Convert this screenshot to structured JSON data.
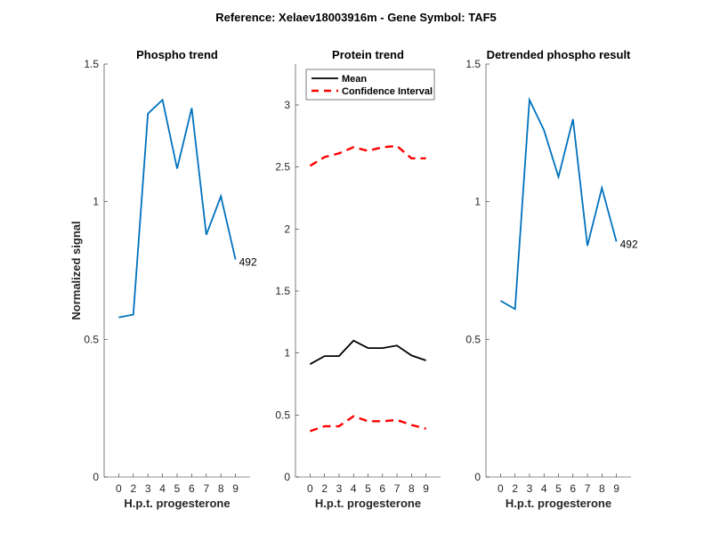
{
  "figure": {
    "suptitle": "Reference:  Xelaev18003916m - Gene Symbol:  TAF5",
    "background": "#ffffff"
  },
  "chart_data": [
    {
      "type": "line",
      "title": "Phospho trend",
      "xlabel": "H.p.t. progesterone",
      "ylabel": "Normalized signal",
      "categories": [
        "0",
        "2",
        "3",
        "4",
        "5",
        "6",
        "7",
        "8",
        "9"
      ],
      "ylim": [
        0,
        1.5
      ],
      "yticks": [
        0,
        0.5,
        1,
        1.5
      ],
      "ytick_labels": [
        "0",
        "0.5",
        "1",
        "1.5"
      ],
      "grid": false,
      "series": [
        {
          "name": "Phospho",
          "color": "#0072BD",
          "style": "solid",
          "values": [
            0.58,
            0.59,
            1.32,
            1.37,
            1.12,
            1.34,
            0.88,
            1.02,
            0.79
          ]
        }
      ],
      "annotations": [
        {
          "text": "492",
          "at_category": "9"
        }
      ]
    },
    {
      "type": "line",
      "title": "Protein trend",
      "xlabel": "H.p.t. progesterone",
      "ylabel": "",
      "categories": [
        "0",
        "2",
        "3",
        "4",
        "5",
        "6",
        "7",
        "8",
        "9"
      ],
      "ylim": [
        0,
        3.33
      ],
      "yticks": [
        0,
        0.5,
        1,
        1.5,
        2,
        2.5,
        3
      ],
      "ytick_labels": [
        "0",
        "0.5",
        "1",
        "1.5",
        "2",
        "2.5",
        "3"
      ],
      "grid": false,
      "legend": {
        "placement": "top",
        "entries": [
          "Mean",
          "Confidence Interval"
        ]
      },
      "series": [
        {
          "name": "Mean",
          "color": "#000000",
          "style": "solid",
          "values": [
            0.91,
            0.975,
            0.975,
            1.1,
            1.04,
            1.04,
            1.06,
            0.98,
            0.94
          ]
        },
        {
          "name": "Confidence Interval",
          "color": "#FF0000",
          "style": "dashed",
          "values": [
            2.51,
            2.58,
            2.61,
            2.66,
            2.63,
            2.66,
            2.67,
            2.57,
            2.57
          ]
        },
        {
          "name": "Confidence Interval (lower)",
          "color": "#FF0000",
          "style": "dashed",
          "in_legend": false,
          "values": [
            0.37,
            0.41,
            0.41,
            0.49,
            0.45,
            0.45,
            0.46,
            0.42,
            0.39
          ]
        }
      ]
    },
    {
      "type": "line",
      "title": "Detrended phospho result",
      "xlabel": "H.p.t. progesterone",
      "ylabel": "",
      "categories": [
        "0",
        "2",
        "3",
        "4",
        "5",
        "6",
        "7",
        "8",
        "9"
      ],
      "ylim": [
        0,
        1.5
      ],
      "yticks": [
        0,
        0.5,
        1,
        1.5
      ],
      "ytick_labels": [
        "0",
        "0.5",
        "1",
        "1.5"
      ],
      "grid": false,
      "series": [
        {
          "name": "Detrended",
          "color": "#0072BD",
          "style": "solid",
          "values": [
            0.64,
            0.61,
            1.37,
            1.26,
            1.09,
            1.3,
            0.84,
            1.05,
            0.855
          ]
        }
      ],
      "annotations": [
        {
          "text": "492",
          "at_category": "9"
        }
      ]
    }
  ]
}
